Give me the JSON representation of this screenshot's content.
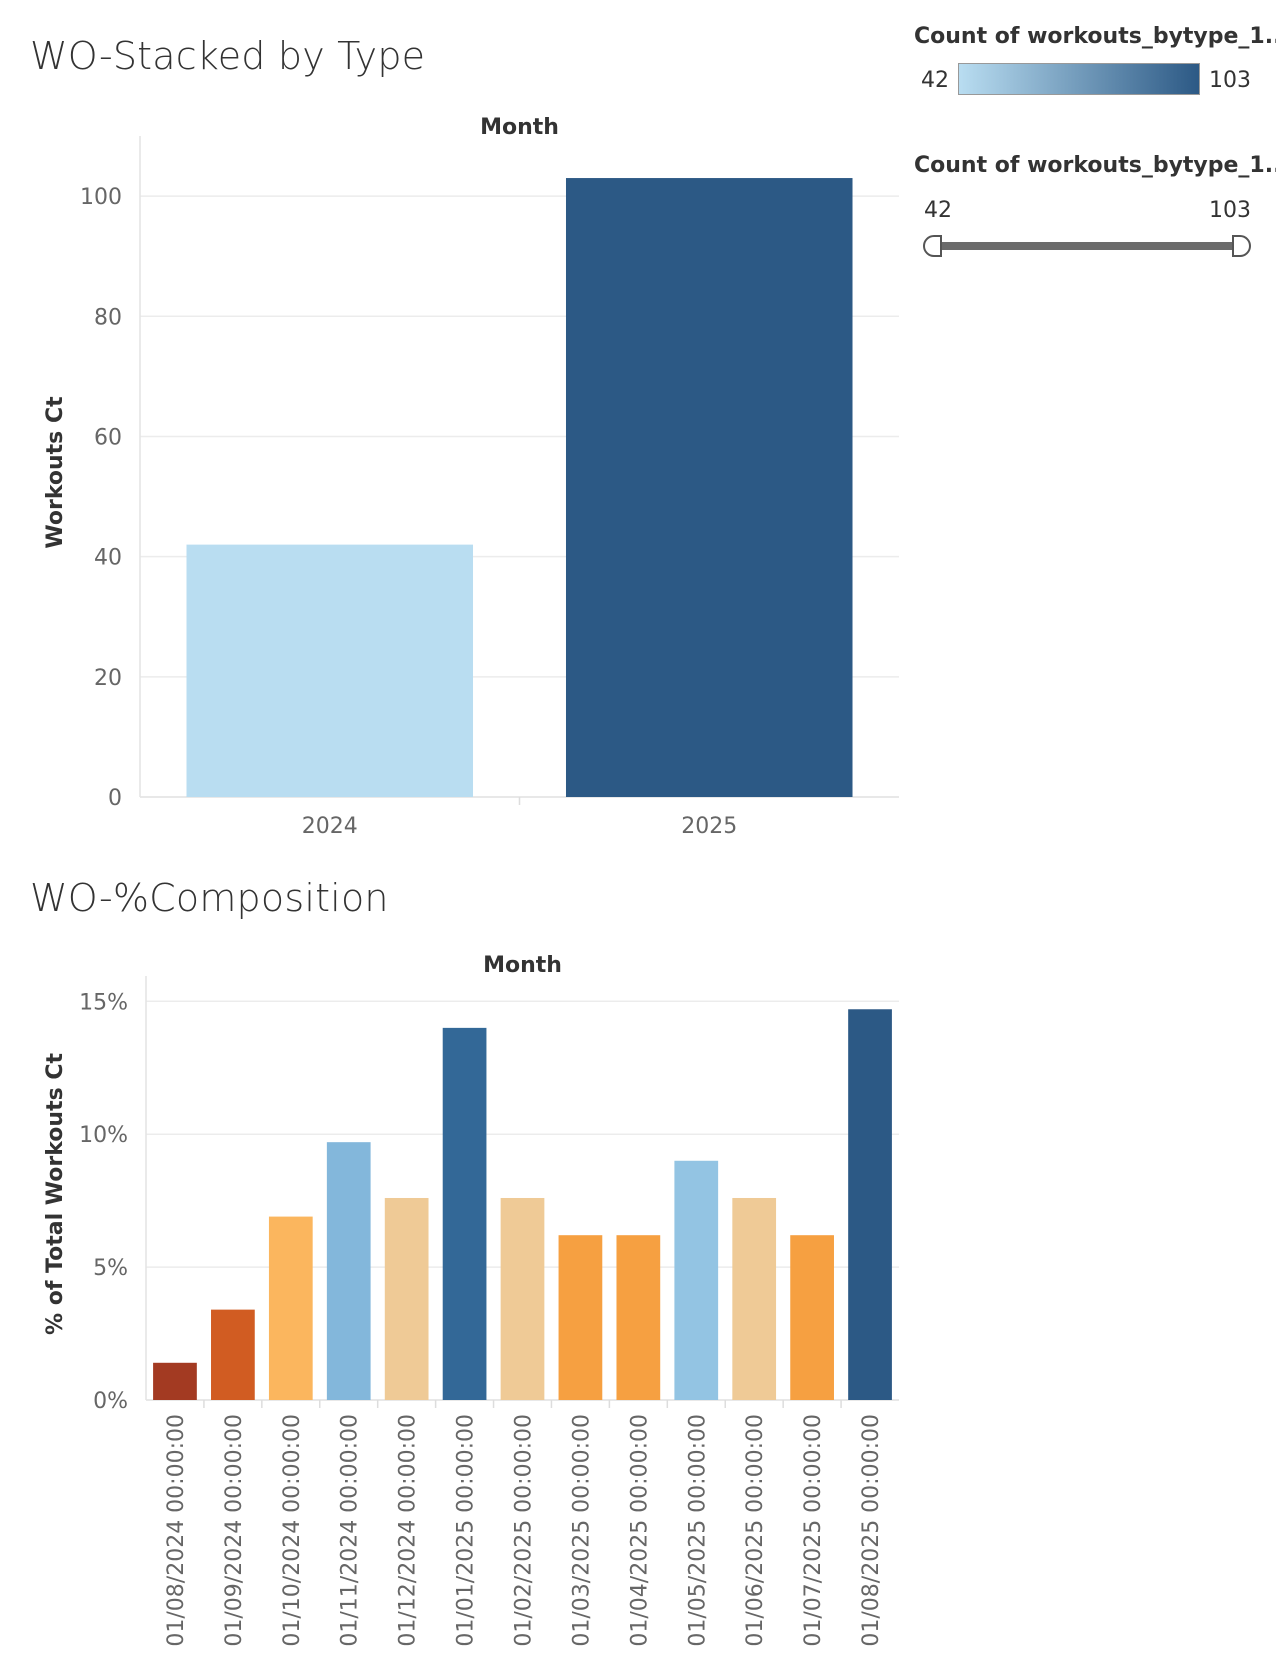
{
  "chart_data": [
    {
      "type": "bar",
      "title": "WO-Stacked by Type",
      "header": "Month",
      "ylabel": "Workouts Ct",
      "xlabel": "",
      "categories": [
        "2024",
        "2025"
      ],
      "values": [
        42,
        103
      ],
      "ylim": [
        0,
        108
      ],
      "yticks": [
        0,
        20,
        40,
        60,
        80,
        100
      ],
      "ytick_labels": [
        "0",
        "20",
        "40",
        "60",
        "80",
        "100"
      ],
      "bar_colors": [
        "#b9ddf1",
        "#2c5985"
      ],
      "grid": true
    },
    {
      "type": "bar",
      "title": "WO-%Composition",
      "header": "Month",
      "ylabel": "% of Total Workouts Ct",
      "xlabel": "",
      "categories": [
        "01/08/2024 00:00:00",
        "01/09/2024 00:00:00",
        "01/10/2024 00:00:00",
        "01/11/2024 00:00:00",
        "01/12/2024 00:00:00",
        "01/01/2025 00:00:00",
        "01/02/2025 00:00:00",
        "01/03/2025 00:00:00",
        "01/04/2025 00:00:00",
        "01/05/2025 00:00:00",
        "01/06/2025 00:00:00",
        "01/07/2025 00:00:00",
        "01/08/2025 00:00:00"
      ],
      "values": [
        1.4,
        3.4,
        6.9,
        9.7,
        7.6,
        14.0,
        7.6,
        6.2,
        6.2,
        9.0,
        7.6,
        6.2,
        14.7
      ],
      "ylim": [
        0,
        15.5
      ],
      "yticks": [
        0,
        5,
        10,
        15
      ],
      "ytick_labels": [
        "0%",
        "5%",
        "10%",
        "15%"
      ],
      "bar_colors": [
        "#a33a22",
        "#d15c22",
        "#fbb65e",
        "#83b7db",
        "#efca96",
        "#336897",
        "#efca96",
        "#f6a041",
        "#f6a041",
        "#93c4e3",
        "#efca96",
        "#f6a041",
        "#2c5985"
      ],
      "grid": true
    }
  ],
  "legends": {
    "color": {
      "title": "Count of workouts_bytype_1..",
      "min_label": "42",
      "max_label": "103",
      "color_low": "#b9ddf1",
      "color_high": "#2c5985"
    },
    "size": {
      "title": "Count of workouts_bytype_1..",
      "min_label": "42",
      "max_label": "103"
    }
  }
}
